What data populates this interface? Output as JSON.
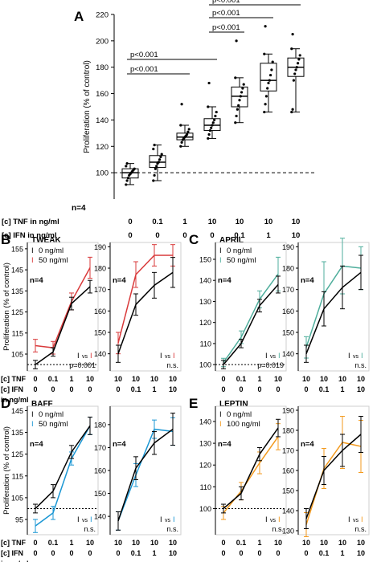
{
  "colors": {
    "axis": "#000000",
    "box": "#000000",
    "black_line": "#000000",
    "tweak": "#d9393a",
    "april": "#4fae9c",
    "baff": "#1b97d4",
    "leptin": "#f39a1e"
  },
  "panel_a": {
    "letter": "A",
    "ylabel": "Proliferation (% of control)",
    "n_label": "n=4",
    "row_labels": [
      "[c] TNF in ng/ml",
      "[c] IFN in ng/ml"
    ],
    "tnf": [
      "0",
      "0.1",
      "1",
      "10",
      "10",
      "10",
      "10"
    ],
    "ifn": [
      "0",
      "0",
      "0",
      "0",
      "0.1",
      "1",
      "10"
    ]
  },
  "panels_bottom": {
    "ylabel": "Proliferation (% of control)",
    "row_labels": [
      "[c] TNF",
      "[c] IFN",
      "in ng/ml"
    ],
    "left_x": {
      "tnf": [
        "0",
        "0.1",
        "1",
        "10"
      ],
      "ifn": [
        "0",
        "0",
        "0",
        "0"
      ]
    },
    "right_x": {
      "tnf": [
        "10",
        "10",
        "10",
        "10"
      ],
      "ifn": [
        "0",
        "0.1",
        "1",
        "10"
      ]
    },
    "legend_vs": "vs"
  },
  "chart_data": [
    {
      "type": "box",
      "panel": "A",
      "ylabel": "Proliferation (% of control)",
      "ylim": [
        80,
        220
      ],
      "yticks": [
        100,
        120,
        140,
        160,
        180,
        200,
        220
      ],
      "categories": [
        "0/0",
        "0.1/0",
        "1/0",
        "10/0",
        "10/0.1",
        "10/1",
        "10/10"
      ],
      "boxes": [
        {
          "min": 91,
          "q1": 96,
          "median": 100,
          "q3": 103,
          "max": 107,
          "points": [
            91,
            94,
            96,
            98,
            99,
            100,
            101,
            102,
            103,
            105,
            107
          ]
        },
        {
          "min": 94,
          "q1": 104,
          "median": 108,
          "q3": 113,
          "max": 121,
          "points": [
            94,
            98,
            103,
            105,
            107,
            108,
            110,
            112,
            114,
            118,
            121
          ]
        },
        {
          "min": 120,
          "q1": 125,
          "median": 127,
          "q3": 130,
          "max": 136,
          "points": [
            120,
            123,
            125,
            126,
            127,
            128,
            129,
            131,
            133,
            136,
            152
          ]
        },
        {
          "min": 126,
          "q1": 132,
          "median": 136,
          "q3": 141,
          "max": 150,
          "points": [
            126,
            129,
            132,
            134,
            136,
            138,
            140,
            143,
            146,
            150,
            168
          ]
        },
        {
          "min": 138,
          "q1": 150,
          "median": 158,
          "q3": 165,
          "max": 172,
          "points": [
            138,
            143,
            148,
            151,
            155,
            158,
            161,
            164,
            167,
            172,
            200
          ]
        },
        {
          "min": 146,
          "q1": 162,
          "median": 170,
          "q3": 183,
          "max": 190,
          "points": [
            146,
            152,
            158,
            164,
            168,
            170,
            174,
            178,
            184,
            190,
            211
          ]
        },
        {
          "min": 146,
          "q1": 173,
          "median": 180,
          "q3": 187,
          "max": 194,
          "points": [
            146,
            148,
            170,
            175,
            178,
            180,
            183,
            186,
            189,
            194,
            205
          ]
        }
      ],
      "control_line": 100,
      "n": "n=4",
      "brackets": [
        {
          "from": 0,
          "to": 3,
          "label": "p<0.001"
        },
        {
          "from": 0,
          "to": 2,
          "label": "p<0.001"
        },
        {
          "from": 3,
          "to": 6,
          "label": "p<0.001"
        },
        {
          "from": 3,
          "to": 5,
          "label": "p<0.001"
        },
        {
          "from": 3,
          "to": 4,
          "label": "p<0.001"
        }
      ]
    },
    {
      "type": "line",
      "panel": "B",
      "title": "TWEAK",
      "legend": [
        "0 ng/ml",
        "50 ng/ml"
      ],
      "n": "n=4",
      "pval": "p=0.001",
      "left": {
        "ylim": [
          97,
          158
        ],
        "yticks": [
          105,
          115,
          125,
          135,
          145,
          155
        ],
        "control_line": 100,
        "series": [
          {
            "name": "0 ng/ml",
            "values": [
              100,
              106,
              129,
              137
            ],
            "err": [
              2,
              2,
              3,
              3
            ]
          },
          {
            "name": "50 ng/ml",
            "values": [
              109,
              108,
              130,
              146
            ],
            "err": [
              3,
              3,
              4,
              5
            ]
          }
        ]
      },
      "right": {
        "ylim": [
          132,
          192
        ],
        "yticks": [
          140,
          150,
          160,
          170,
          180,
          190
        ],
        "pval": "n.s.",
        "series": [
          {
            "name": "0 ng/ml",
            "values": [
              140,
              163,
              172,
              178
            ],
            "err": [
              4,
              5,
              6,
              7
            ]
          },
          {
            "name": "50 ng/ml",
            "values": [
              145,
              177,
              186,
              186
            ],
            "err": [
              5,
              6,
              5,
              5
            ]
          }
        ]
      }
    },
    {
      "type": "line",
      "panel": "C",
      "title": "APRIL",
      "legend": [
        "0 ng/ml",
        "50 ng/ml"
      ],
      "n": "n=4",
      "pval": "p=0.019",
      "left": {
        "ylim": [
          97,
          158
        ],
        "yticks": [
          100,
          110,
          120,
          130,
          140,
          150
        ],
        "control_line": 100,
        "series": [
          {
            "name": "0 ng/ml",
            "values": [
              100,
              110,
              128,
              138
            ],
            "err": [
              2,
              2,
              3,
              4
            ]
          },
          {
            "name": "50 ng/ml",
            "values": [
              101,
              113,
              131,
              143
            ],
            "err": [
              2,
              3,
              4,
              8
            ]
          }
        ]
      },
      "right": {
        "ylim": [
          132,
          192
        ],
        "yticks": [
          140,
          150,
          160,
          170,
          180,
          190
        ],
        "pval": "n.s.",
        "series": [
          {
            "name": "0 ng/ml",
            "values": [
              140,
              161,
              171,
              178
            ],
            "err": [
              4,
              8,
              10,
              8
            ]
          },
          {
            "name": "50 ng/ml",
            "values": [
              143,
              168,
              181,
              180
            ],
            "err": [
              5,
              15,
              13,
              10
            ]
          }
        ]
      }
    },
    {
      "type": "line",
      "panel": "D",
      "title": "BAFF",
      "legend": [
        "0 ng/ml",
        "50 ng/ml"
      ],
      "n": "n=4",
      "pval": "n.s.",
      "left": {
        "ylim": [
          88,
          147
        ],
        "yticks": [
          95,
          105,
          115,
          125,
          135,
          145
        ],
        "control_line": 100,
        "series": [
          {
            "name": "0 ng/ml",
            "values": [
              100,
              108,
              126,
              138
            ],
            "err": [
              2,
              3,
              3,
              4
            ]
          },
          {
            "name": "50 ng/ml",
            "values": [
              92,
              98,
              123,
              138
            ],
            "err": [
              3,
              3,
              3,
              4
            ]
          }
        ]
      },
      "right": {
        "ylim": [
          132,
          188
        ],
        "yticks": [
          140,
          150,
          160,
          170,
          180
        ],
        "pval": "n.s.",
        "series": [
          {
            "name": "0 ng/ml",
            "values": [
              138,
              161,
              172,
              178
            ],
            "err": [
              4,
              5,
              5,
              7
            ]
          },
          {
            "name": "50 ng/ml",
            "values": [
              138,
              158,
              178,
              177
            ],
            "err": [
              4,
              5,
              4,
              6
            ]
          }
        ]
      }
    },
    {
      "type": "line",
      "panel": "E",
      "title": "LEPTIN",
      "legend": [
        "0 ng/ml",
        "100 ng/ml"
      ],
      "n": "n=4",
      "pval": "n.s.",
      "left": {
        "ylim": [
          88,
          147
        ],
        "yticks": [
          100,
          110,
          120,
          130,
          140
        ],
        "control_line": 100,
        "series": [
          {
            "name": "0 ng/ml",
            "values": [
              100,
              107,
              125,
              137
            ],
            "err": [
              2,
              3,
              3,
              4
            ]
          },
          {
            "name": "100 ng/ml",
            "values": [
              98,
              108,
              121,
              133
            ],
            "err": [
              3,
              4,
              5,
              6
            ]
          }
        ]
      },
      "right": {
        "ylim": [
          128,
          192
        ],
        "yticks": [
          130,
          140,
          150,
          160,
          170,
          180,
          190
        ],
        "pval": "n.s.",
        "series": [
          {
            "name": "0 ng/ml",
            "values": [
              136,
              160,
              170,
              178
            ],
            "err": [
              5,
              7,
              8,
              9
            ]
          },
          {
            "name": "100 ng/ml",
            "values": [
              133,
              161,
              174,
              172
            ],
            "err": [
              6,
              10,
              13,
              13
            ]
          }
        ]
      }
    }
  ]
}
